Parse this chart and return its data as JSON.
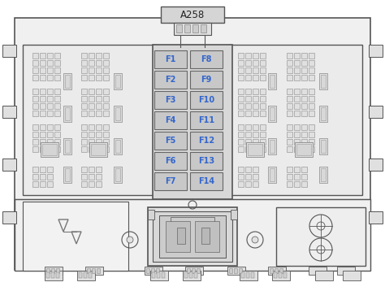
{
  "bg_color": "#ffffff",
  "line_color": "#555555",
  "fuse_bg_color": "#c8c8c8",
  "fuse_text_color": "#3366cc",
  "label_text": "A258",
  "fuses_left": [
    "F1",
    "F2",
    "F3",
    "F4",
    "F5",
    "F6",
    "F7"
  ],
  "fuses_right": [
    "F8",
    "F9",
    "F10",
    "F11",
    "F12",
    "F13",
    "F14"
  ],
  "outer_fc": "#f2f2f2",
  "inner_fc": "#f0f0f0",
  "grid_fc": "#e8e8e8",
  "grid_ec": "#999999"
}
